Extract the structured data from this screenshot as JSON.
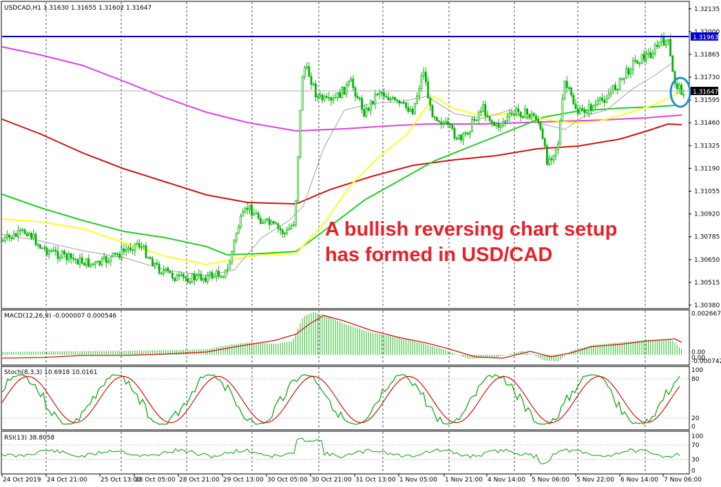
{
  "chart_data": {
    "type": "candlestick",
    "main": {
      "title": "USDCAD,H1  1.31630 1.31655 1.31602 1.31647",
      "ylim": [
        1.3038,
        1.3213
      ],
      "price_ticks": [
        "1.32135",
        "1.32000",
        "1.31865",
        "1.31730",
        "1.31595",
        "1.31460",
        "1.31325",
        "1.31190",
        "1.31055",
        "1.30920",
        "1.30785",
        "1.30650",
        "1.30515",
        "1.30380"
      ],
      "resistance_label": "1.31963",
      "current_label": "1.31647",
      "annotation_line1": "A bullish reversing chart setup",
      "annotation_line2": "has formed in USD/CAD",
      "colors": {
        "candle": "#00c000",
        "ma20": "#a0a0a0",
        "ma50": "#ffff20",
        "ma100": "#22cc22",
        "ma200": "#d01010",
        "ma400": "#e040e0",
        "resistance": "#0000cc",
        "ellipse": "#1e90d0"
      }
    },
    "macd": {
      "title": "MACD(12,26,9) -0.000007 0.000546",
      "ticks": [
        "0.002667",
        "0.00",
        "0.00",
        "-0.000742"
      ]
    },
    "stoch": {
      "title": "Stoch(8,3,3) 10.6918 10.0161",
      "ticks": [
        "100",
        "80",
        "20",
        "0"
      ]
    },
    "rsi": {
      "title": "RSI(13) 38.8058",
      "ticks": [
        "100",
        "70",
        "30",
        "0"
      ]
    },
    "x_labels": [
      "24 Oct 2019",
      "24 Oct 21:00",
      "25 Oct 13:00",
      "28 Oct 05:00",
      "28 Oct 21:00",
      "29 Oct 13:00",
      "30 Oct 05:00",
      "30 Oct 21:00",
      "31 Oct 13:00",
      "1 Nov 05:00",
      "1 Nov 21:00",
      "4 Nov 14:00",
      "5 Nov 06:00",
      "5 Nov 22:00",
      "6 Nov 14:00",
      "7 Nov 06:00"
    ]
  }
}
